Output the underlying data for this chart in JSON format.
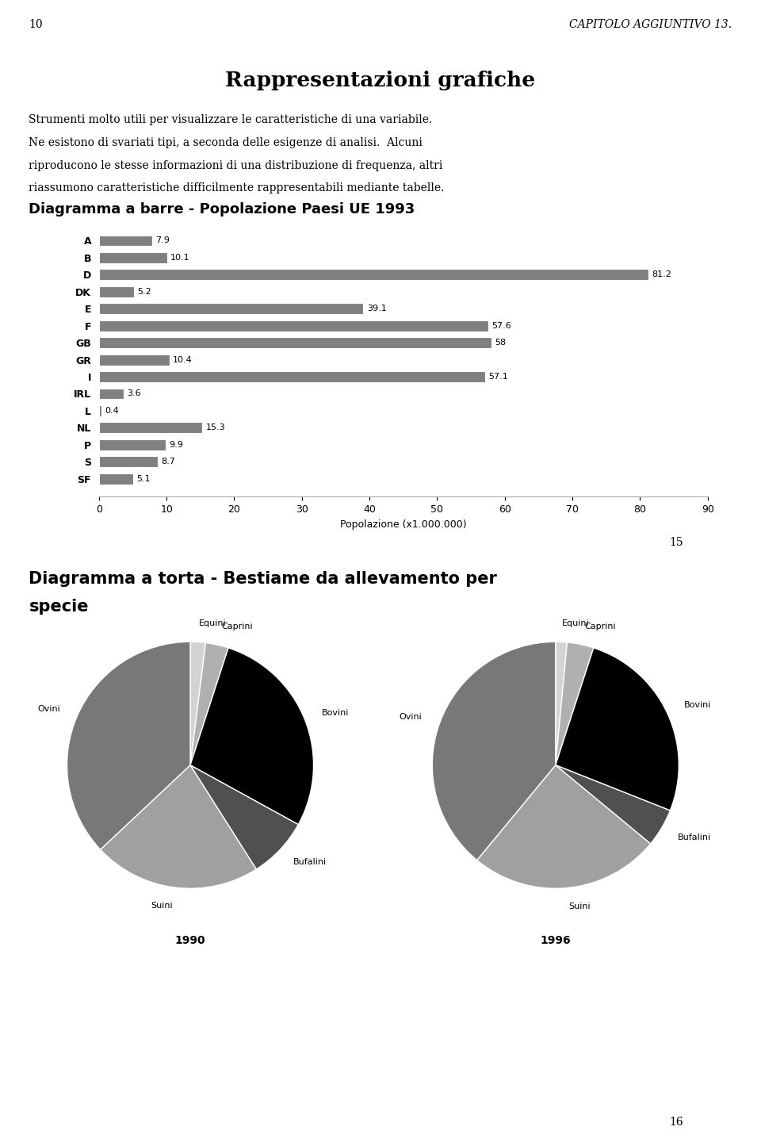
{
  "page_number_left": "10",
  "page_header_right": "CAPITOLO AGGIUNTIVO 13.",
  "section_title": "Rappresentazioni grafiche",
  "intro_text_line1": "Strumenti molto utili per visualizzare le caratteristiche di una variabile.",
  "intro_text_line2": "Ne esistono di svariati tipi, a seconda delle esigenze di analisi.  Alcuni",
  "intro_text_line3": "riproducono le stesse informazioni di una distribuzione di frequenza, altri",
  "intro_text_line4": "riassumono caratteristiche difficilmente rappresentabili mediante tabelle.",
  "bar_chart_title": "Diagramma a barre - Popolazione Paesi UE 1993",
  "bar_categories": [
    "A",
    "B",
    "D",
    "DK",
    "E",
    "F",
    "GB",
    "GR",
    "I",
    "IRL",
    "L",
    "NL",
    "P",
    "S",
    "SF"
  ],
  "bar_values": [
    7.9,
    10.1,
    81.2,
    5.2,
    39.1,
    57.6,
    58.0,
    10.4,
    57.1,
    3.6,
    0.4,
    15.3,
    9.9,
    8.7,
    5.1
  ],
  "bar_color": "#808080",
  "bar_xlabel": "Popolazione (x1.000.000)",
  "bar_xlim": [
    0,
    90
  ],
  "bar_xticks": [
    0,
    10,
    20,
    30,
    40,
    50,
    60,
    70,
    80,
    90
  ],
  "page_number_15": "15",
  "pie_chart_title_line1": "Diagramma a torta - Bestiame da allevamento per",
  "pie_chart_title_line2": "specie",
  "pie1_year": "1990",
  "pie1_labels": [
    "Equini",
    "Caprini",
    "Bovini",
    "Bufalini",
    "Suini",
    "Ovini"
  ],
  "pie1_values": [
    2.0,
    3.0,
    28.0,
    8.0,
    22.0,
    37.0
  ],
  "pie1_colors": [
    "#d3d3d3",
    "#b0b0b0",
    "#000000",
    "#505050",
    "#a0a0a0",
    "#787878"
  ],
  "pie2_year": "1996",
  "pie2_labels": [
    "Equini",
    "Caprini",
    "Bovini",
    "Bufalini",
    "Suini",
    "Ovini"
  ],
  "pie2_values": [
    1.5,
    3.5,
    26.0,
    5.0,
    25.0,
    39.0
  ],
  "pie2_colors": [
    "#d3d3d3",
    "#b0b0b0",
    "#000000",
    "#505050",
    "#a0a0a0",
    "#787878"
  ],
  "page_number_16": "16",
  "bg_color": "#ffffff",
  "text_color": "#000000"
}
